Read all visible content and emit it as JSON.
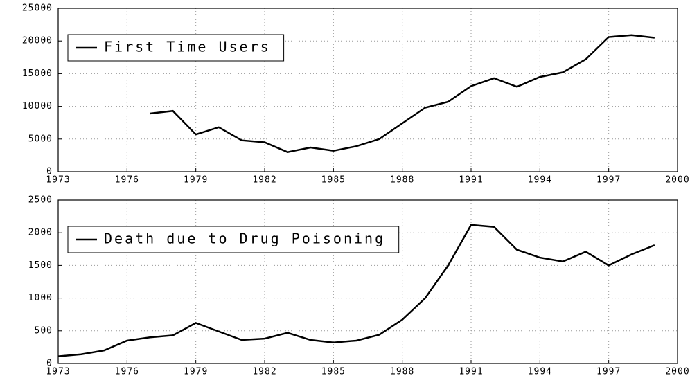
{
  "chart_data": [
    {
      "type": "line",
      "legend": "upper left",
      "grid": true,
      "x": [
        1977,
        1978,
        1979,
        1980,
        1981,
        1982,
        1983,
        1984,
        1985,
        1986,
        1987,
        1988,
        1989,
        1990,
        1991,
        1992,
        1993,
        1994,
        1995,
        1996,
        1997,
        1998,
        1999
      ],
      "series": [
        {
          "name": "First Time Users",
          "color": "#000000",
          "values": [
            8900,
            9300,
            5700,
            6800,
            4800,
            4500,
            3000,
            3700,
            3200,
            3900,
            5000,
            7400,
            9800,
            10700,
            13100,
            14300,
            13000,
            14500,
            15200,
            17200,
            20600,
            20900,
            20500
          ]
        }
      ],
      "xlim": [
        1973,
        2000
      ],
      "xticks": [
        1973,
        1976,
        1979,
        1982,
        1985,
        1988,
        1991,
        1994,
        1997,
        2000
      ],
      "ylim": [
        0,
        25000
      ],
      "yticks": [
        0,
        5000,
        10000,
        15000,
        20000,
        25000
      ]
    },
    {
      "type": "line",
      "legend": "upper left",
      "grid": true,
      "x": [
        1973,
        1974,
        1975,
        1976,
        1977,
        1978,
        1979,
        1980,
        1981,
        1982,
        1983,
        1984,
        1985,
        1986,
        1987,
        1988,
        1989,
        1990,
        1991,
        1992,
        1993,
        1994,
        1995,
        1996,
        1997,
        1998,
        1999
      ],
      "series": [
        {
          "name": "Death due to Drug Poisoning",
          "color": "#000000",
          "values": [
            110,
            140,
            200,
            350,
            400,
            430,
            620,
            490,
            360,
            380,
            470,
            360,
            320,
            350,
            440,
            670,
            1000,
            1500,
            2120,
            2090,
            1740,
            1620,
            1560,
            1710,
            1500,
            1670,
            1810
          ]
        }
      ],
      "xlim": [
        1973,
        2000
      ],
      "xticks": [
        1973,
        1976,
        1979,
        1982,
        1985,
        1988,
        1991,
        1994,
        1997,
        2000
      ],
      "ylim": [
        0,
        2500
      ],
      "yticks": [
        0,
        500,
        1000,
        1500,
        2000,
        2500
      ]
    }
  ]
}
